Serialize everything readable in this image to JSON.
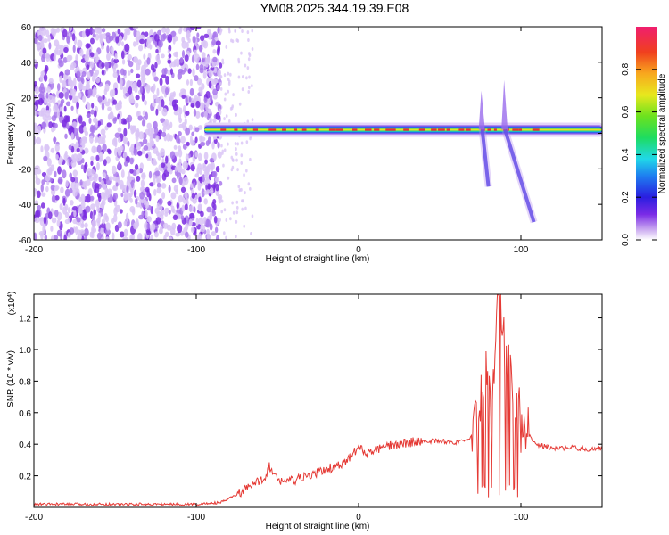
{
  "title": "YM08.2025.344.19.39.E08",
  "chart_data": [
    {
      "type": "heatmap",
      "name": "spectrogram",
      "xlabel": "Height of straight line (km)",
      "ylabel": "Frequency (Hz)",
      "xlim": [
        -200,
        150
      ],
      "ylim": [
        -60,
        60
      ],
      "xticks": [
        "-200",
        "-100",
        "0",
        "100"
      ],
      "yticks": [
        "60",
        "40",
        "20",
        "0",
        "-20",
        "-40",
        "-60"
      ],
      "colorbar": {
        "label": "Normalized spectral amplitude",
        "range": [
          0.0,
          1.0
        ],
        "ticks": [
          "0.0",
          "0.2",
          "0.4",
          "0.6",
          "0.8"
        ]
      },
      "features": {
        "noise_region_km": [
          -200,
          -85
        ],
        "carrier_freq_hz": 2,
        "carrier_region_km": [
          -95,
          150
        ],
        "excursions": [
          {
            "km_start": 74,
            "km_end": 80,
            "freq_max": 24,
            "freq_min": -30
          },
          {
            "km_start": 88,
            "km_end": 108,
            "freq_max": 30,
            "freq_min": -50
          }
        ]
      }
    },
    {
      "type": "line",
      "name": "snr",
      "xlabel": "Height of straight line (km)",
      "ylabel": "SNR (10 * v/v)",
      "multiplier": "(x10^4)",
      "multiplier_base": "(x10",
      "multiplier_exp": "4",
      "multiplier_close": ")",
      "xlim": [
        -200,
        150
      ],
      "ylim": [
        0,
        1.35
      ],
      "xticks": [
        "-200",
        "-100",
        "0",
        "100"
      ],
      "yticks": [
        "0.2",
        "0.4",
        "0.6",
        "0.8",
        "1.0",
        "1.2"
      ],
      "color": "#e53a35",
      "series": [
        {
          "name": "SNR",
          "x": [
            -200,
            -150,
            -100,
            -85,
            -75,
            -65,
            -58,
            -55,
            -50,
            -40,
            -30,
            -20,
            -10,
            -5,
            0,
            5,
            10,
            20,
            30,
            40,
            50,
            60,
            68,
            72,
            75,
            78,
            80,
            82,
            85,
            88,
            90,
            92,
            95,
            98,
            100,
            105,
            110,
            120,
            130,
            140,
            150
          ],
          "y": [
            0.02,
            0.02,
            0.02,
            0.03,
            0.08,
            0.14,
            0.19,
            0.26,
            0.17,
            0.17,
            0.2,
            0.24,
            0.27,
            0.32,
            0.38,
            0.34,
            0.36,
            0.39,
            0.41,
            0.42,
            0.42,
            0.41,
            0.42,
            0.55,
            0.7,
            0.85,
            1.0,
            0.6,
            1.2,
            1.33,
            0.9,
            0.95,
            0.7,
            0.6,
            0.5,
            0.45,
            0.4,
            0.37,
            0.38,
            0.37,
            0.37
          ]
        }
      ]
    }
  ]
}
